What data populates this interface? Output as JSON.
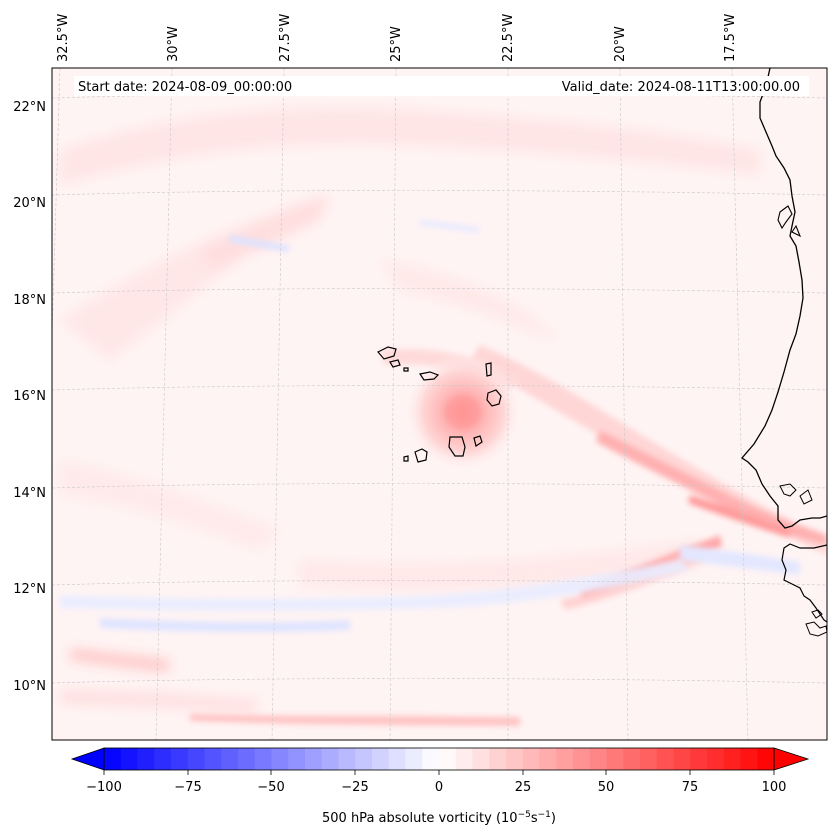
{
  "map": {
    "start_label": "Start date: 2024-08-09_00:00:00",
    "valid_label": "Valid_date: 2024-08-11T13:00:00.00",
    "lon_ticks": [
      "32.5°W",
      "30°W",
      "27.5°W",
      "25°W",
      "22.5°W",
      "20°W",
      "17.5°W"
    ],
    "lat_ticks": [
      "22°N",
      "20°N",
      "18°N",
      "16°N",
      "14°N",
      "12°N",
      "10°N"
    ]
  },
  "colorbar": {
    "label_prefix": "500 hPa absolute vorticity (10",
    "label_exp1": "−5",
    "label_mid": "s",
    "label_exp2": "−1",
    "label_suffix": ")",
    "ticks": [
      "−100",
      "−75",
      "−50",
      "−25",
      "0",
      "25",
      "50",
      "75",
      "100"
    ],
    "min": -100,
    "max": 100,
    "low_color": "#0000ff",
    "mid_color": "#ffffff",
    "high_color": "#ff0000"
  },
  "colors": {
    "coastline": "#000000",
    "grid": "#c8c8c8",
    "background_field": "#fff3f3"
  }
}
